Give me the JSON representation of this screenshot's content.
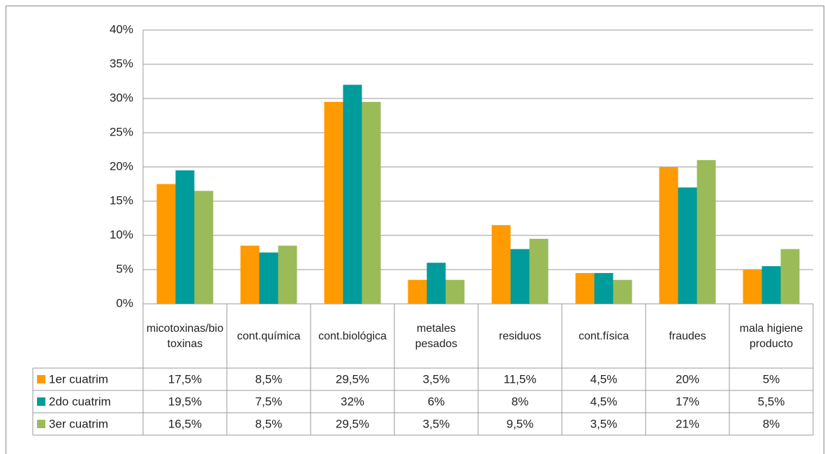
{
  "chart_data": {
    "type": "bar",
    "categories": [
      "micotoxinas/biotoxinas",
      "cont.química",
      "cont.biológica",
      "metales pesados",
      "residuos",
      "cont.física",
      "fraudes",
      "mala higiene producto"
    ],
    "series": [
      {
        "name": "1er cuatrim",
        "color": "#ff9a00",
        "values": [
          17.5,
          8.5,
          29.5,
          3.5,
          11.5,
          4.5,
          20,
          5
        ],
        "value_labels": [
          "17,5%",
          "8,5%",
          "29,5%",
          "3,5%",
          "11,5%",
          "4,5%",
          "20%",
          "5%"
        ]
      },
      {
        "name": "2do cuatrim",
        "color": "#009b9b",
        "values": [
          19.5,
          7.5,
          32,
          6,
          8,
          4.5,
          17,
          5.5
        ],
        "value_labels": [
          "19,5%",
          "7,5%",
          "32%",
          "6%",
          "8%",
          "4,5%",
          "17%",
          "5,5%"
        ]
      },
      {
        "name": "3er cuatrim",
        "color": "#9bbb59",
        "values": [
          16.5,
          8.5,
          29.5,
          3.5,
          9.5,
          3.5,
          21,
          8
        ],
        "value_labels": [
          "16,5%",
          "8,5%",
          "29,5%",
          "3,5%",
          "9,5%",
          "3,5%",
          "21%",
          "8%"
        ]
      }
    ],
    "ylim": [
      0,
      40
    ],
    "yticks": [
      {
        "value": 0,
        "label": "0%"
      },
      {
        "value": 5,
        "label": "5%"
      },
      {
        "value": 10,
        "label": "10%"
      },
      {
        "value": 15,
        "label": "15%"
      },
      {
        "value": 20,
        "label": "20%"
      },
      {
        "value": 25,
        "label": "25%"
      },
      {
        "value": 30,
        "label": "30%"
      },
      {
        "value": 35,
        "label": "35%"
      },
      {
        "value": 40,
        "label": "40%"
      }
    ],
    "grid": true
  }
}
